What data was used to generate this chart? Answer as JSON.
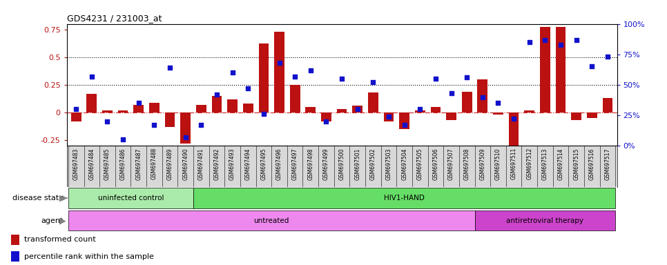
{
  "title": "GDS4231 / 231003_at",
  "samples": [
    "GSM697483",
    "GSM697484",
    "GSM697485",
    "GSM697486",
    "GSM697487",
    "GSM697488",
    "GSM697489",
    "GSM697490",
    "GSM697491",
    "GSM697492",
    "GSM697493",
    "GSM697494",
    "GSM697495",
    "GSM697496",
    "GSM697497",
    "GSM697498",
    "GSM697499",
    "GSM697500",
    "GSM697501",
    "GSM697502",
    "GSM697503",
    "GSM697504",
    "GSM697505",
    "GSM697506",
    "GSM697507",
    "GSM697508",
    "GSM697509",
    "GSM697510",
    "GSM697511",
    "GSM697512",
    "GSM697513",
    "GSM697514",
    "GSM697515",
    "GSM697516",
    "GSM697517"
  ],
  "bar_values": [
    -0.08,
    0.17,
    0.02,
    0.02,
    0.07,
    0.09,
    -0.13,
    -0.28,
    0.07,
    0.15,
    0.12,
    0.08,
    0.62,
    0.73,
    0.25,
    0.05,
    -0.08,
    0.03,
    0.06,
    0.18,
    -0.08,
    -0.15,
    0.02,
    0.05,
    -0.07,
    0.19,
    0.3,
    -0.02,
    -0.3,
    0.02,
    0.77,
    0.77,
    -0.07,
    -0.05,
    0.13
  ],
  "percentile_values": [
    30,
    57,
    20,
    5,
    35,
    17,
    64,
    7,
    17,
    42,
    60,
    47,
    26,
    68,
    57,
    62,
    20,
    55,
    30,
    52,
    24,
    17,
    30,
    55,
    43,
    56,
    40,
    35,
    22,
    85,
    87,
    83,
    87,
    65,
    73
  ],
  "bar_color": "#bb1111",
  "dot_color": "#1111cc",
  "ylim_left": [
    -0.3,
    0.8
  ],
  "ylim_right": [
    0,
    100
  ],
  "yticks_left": [
    -0.25,
    0.0,
    0.25,
    0.5,
    0.75
  ],
  "yticks_right": [
    0,
    25,
    50,
    75,
    100
  ],
  "hlines": [
    0.25,
    0.5
  ],
  "hline_zero_color": "#cc2222",
  "hline_color": "black",
  "disease_state_groups": [
    {
      "label": "uninfected control",
      "start": 0,
      "end": 8,
      "color": "#aaeaaa"
    },
    {
      "label": "HIV1-HAND",
      "start": 8,
      "end": 35,
      "color": "#66dd66"
    }
  ],
  "agent_groups": [
    {
      "label": "untreated",
      "start": 0,
      "end": 26,
      "color": "#ee88ee"
    },
    {
      "label": "antiretroviral therapy",
      "start": 26,
      "end": 35,
      "color": "#cc44cc"
    }
  ],
  "disease_label": "disease state",
  "agent_label": "agent",
  "legend_bar_label": "transformed count",
  "legend_dot_label": "percentile rank within the sample",
  "xtick_bg": "#d8d8d8",
  "fig_width": 9.66,
  "fig_height": 3.84
}
